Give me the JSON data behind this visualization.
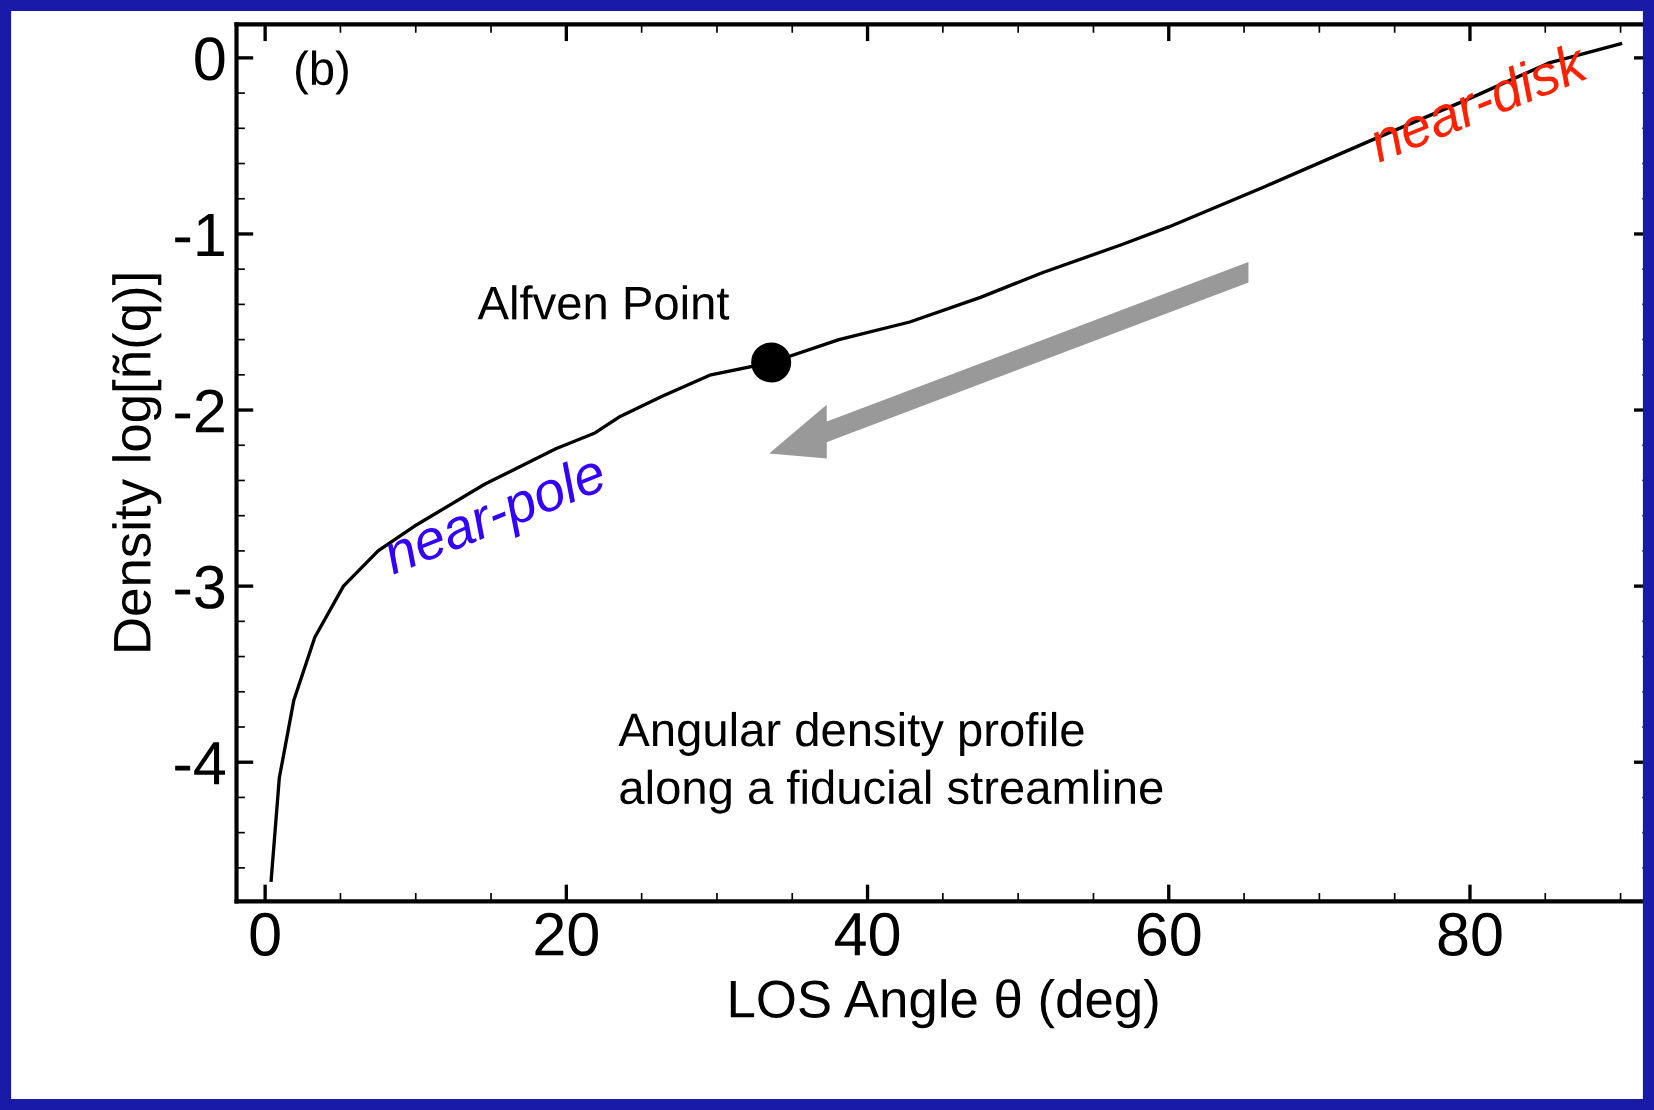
{
  "chart_data": {
    "type": "line",
    "xlabel": "LOS Angle θ (deg)",
    "ylabel": "Density log[ñ(q)]",
    "xlim": [
      -1.9,
      92
    ],
    "ylim": [
      -4.79,
      0.19
    ],
    "xticks": [
      0,
      20,
      40,
      60,
      80
    ],
    "yticks": [
      0,
      -1,
      -2,
      -3,
      -4
    ],
    "grid": false,
    "legend": false,
    "series": [
      {
        "color": "#000000",
        "marker": "none",
        "line_style": "solid",
        "x": [
          0.4,
          0.94,
          1.9,
          3.3,
          5.2,
          7.5,
          9.9,
          14.6,
          19.3,
          21.9,
          23.5,
          26.4,
          29.6,
          33.6,
          38.1,
          42.8,
          47.5,
          51.6,
          56.9,
          60,
          66.4,
          73.4,
          80,
          85.2,
          90
        ],
        "values": [
          -4.67,
          -4.09,
          -3.65,
          -3.29,
          -3.0,
          -2.8,
          -2.66,
          -2.42,
          -2.22,
          -2.13,
          -2.04,
          -1.92,
          -1.8,
          -1.73,
          -1.6,
          -1.5,
          -1.36,
          -1.22,
          -1.06,
          -0.96,
          -0.73,
          -0.47,
          -0.23,
          -0.03,
          0.08
        ]
      },
      {
        "type": "scatter",
        "color": "#000000",
        "marker": "circle",
        "x": [
          33.6
        ],
        "values": [
          -1.73
        ]
      }
    ],
    "annotations": [
      "(b)",
      {
        "text": "Alfven Point",
        "x": 33.6,
        "y": -1.73
      },
      "near-disk",
      "near-pole",
      "Angular density profile\nalong a fiducial streamline"
    ]
  }
}
